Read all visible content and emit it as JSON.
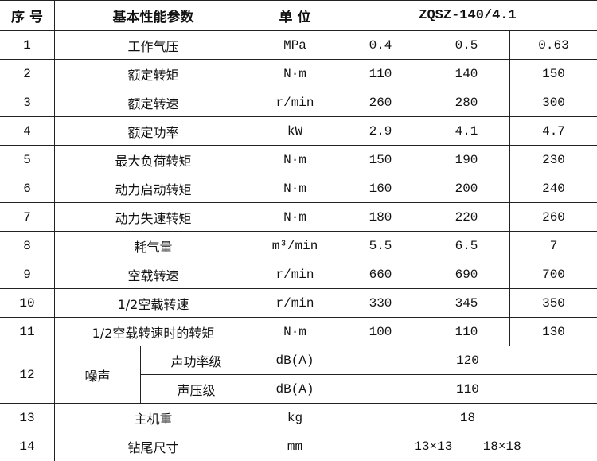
{
  "header": {
    "index": "序 号",
    "parameter": "基本性能参数",
    "unit": "单 位",
    "model": "ZQSZ-140/4.1"
  },
  "rows": [
    {
      "index": "1",
      "parameter": "工作气压",
      "unit": "MPa",
      "values": [
        "0.4",
        "0.5",
        "0.63"
      ]
    },
    {
      "index": "2",
      "parameter": "额定转矩",
      "unit": "N·m",
      "values": [
        "110",
        "140",
        "150"
      ]
    },
    {
      "index": "3",
      "parameter": "额定转速",
      "unit": "r/min",
      "values": [
        "260",
        "280",
        "300"
      ]
    },
    {
      "index": "4",
      "parameter": "额定功率",
      "unit": "kW",
      "values": [
        "2.9",
        "4.1",
        "4.7"
      ]
    },
    {
      "index": "5",
      "parameter": "最大负荷转矩",
      "unit": "N·m",
      "values": [
        "150",
        "190",
        "230"
      ]
    },
    {
      "index": "6",
      "parameter": "动力启动转矩",
      "unit": "N·m",
      "values": [
        "160",
        "200",
        "240"
      ]
    },
    {
      "index": "7",
      "parameter": "动力失速转矩",
      "unit": "N·m",
      "values": [
        "180",
        "220",
        "260"
      ]
    },
    {
      "index": "8",
      "parameter": "耗气量",
      "unit": "m³/min",
      "values": [
        "5.5",
        "6.5",
        "7"
      ]
    },
    {
      "index": "9",
      "parameter": "空载转速",
      "unit": "r/min",
      "values": [
        "660",
        "690",
        "700"
      ]
    },
    {
      "index": "10",
      "parameter": "1/2空载转速",
      "unit": "r/min",
      "values": [
        "330",
        "345",
        "350"
      ]
    },
    {
      "index": "11",
      "parameter": "1/2空载转速时的转矩",
      "unit": "N·m",
      "values": [
        "100",
        "110",
        "130"
      ]
    }
  ],
  "noise": {
    "index": "12",
    "parameter": "噪声",
    "sub": [
      {
        "parameter": "声功率级",
        "unit": "dB(A)",
        "value": "120"
      },
      {
        "parameter": "声压级",
        "unit": "dB(A)",
        "value": "110"
      }
    ]
  },
  "weight": {
    "index": "13",
    "parameter": "主机重",
    "unit": "kg",
    "value": "18"
  },
  "shank": {
    "index": "14",
    "parameter": "钻尾尺寸",
    "unit": "mm",
    "value": "13×13    18×18"
  }
}
